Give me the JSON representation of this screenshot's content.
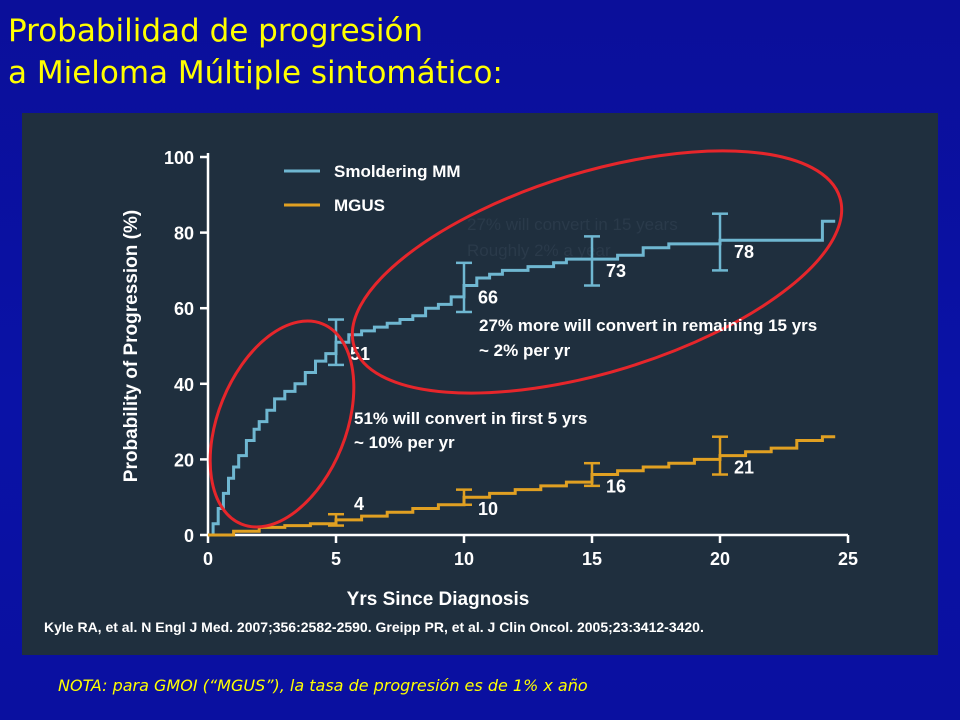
{
  "slide": {
    "title_line1": "Probabilidad de progresión",
    "title_line2": "a Mieloma Múltiple sintomático:",
    "footnote": "NOTA: para GMOI (“MGUS”), la tasa de progresión  es de 1% x año"
  },
  "colors": {
    "background": "#0a12a6",
    "title": "#ffff00",
    "panel": "#1f2f3e",
    "smm": "#6fb7d1",
    "mgus": "#e0a022",
    "ellipse": "#e6262b",
    "axis": "#ffffff",
    "overlay_text": "#2a3a4a"
  },
  "chart_data": {
    "type": "line",
    "title": "",
    "xlabel": "Yrs Since Diagnosis",
    "ylabel": "Probability of Progression (%)",
    "xlim": [
      0,
      25
    ],
    "ylim": [
      0,
      100
    ],
    "x_ticks": [
      0,
      5,
      10,
      15,
      20,
      25
    ],
    "y_ticks": [
      0,
      20,
      40,
      60,
      80,
      100
    ],
    "grid": false,
    "legend_position": "top-left",
    "series": [
      {
        "name": "Smoldering MM",
        "color": "#6fb7d1",
        "x": [
          0,
          0.2,
          0.4,
          0.6,
          0.8,
          1.0,
          1.2,
          1.5,
          1.8,
          2.0,
          2.3,
          2.6,
          3.0,
          3.4,
          3.8,
          4.2,
          4.6,
          5.0,
          5.5,
          6.0,
          6.5,
          7.0,
          7.5,
          8.0,
          8.5,
          9.0,
          9.5,
          10.0,
          10.5,
          11.0,
          11.5,
          12.0,
          12.5,
          13.0,
          13.5,
          14.0,
          14.5,
          15.0,
          16.0,
          17.0,
          18.0,
          19.0,
          20.0,
          21.0,
          22.0,
          23.0,
          24.0,
          24.5
        ],
        "y": [
          0,
          3,
          7,
          11,
          15,
          18,
          21,
          25,
          28,
          30,
          33,
          36,
          38,
          40,
          43,
          46,
          48,
          51,
          53,
          54,
          55,
          56,
          57,
          58,
          60,
          61,
          63,
          66,
          68,
          69,
          70,
          70,
          71,
          71,
          72,
          73,
          73,
          73,
          74,
          76,
          77,
          77,
          78,
          78,
          78,
          78,
          83,
          83
        ]
      },
      {
        "name": "MGUS",
        "color": "#e0a022",
        "x": [
          0,
          1,
          2,
          3,
          4,
          5,
          6,
          7,
          8,
          9,
          10,
          11,
          12,
          13,
          14,
          15,
          16,
          17,
          18,
          19,
          20,
          21,
          22,
          23,
          24,
          24.5
        ],
        "y": [
          0,
          1,
          2,
          2.5,
          3,
          4,
          5,
          6,
          7,
          8,
          10,
          11,
          12,
          13,
          14,
          16,
          17,
          18,
          19,
          20,
          21,
          22,
          23,
          25,
          26,
          26
        ]
      }
    ],
    "point_labels": [
      {
        "series": "Smoldering MM",
        "x": 5,
        "y": 51,
        "label": "51",
        "err_low": 45,
        "err_high": 57
      },
      {
        "series": "Smoldering MM",
        "x": 10,
        "y": 66,
        "label": "66",
        "err_low": 59,
        "err_high": 72
      },
      {
        "series": "Smoldering MM",
        "x": 15,
        "y": 73,
        "label": "73",
        "err_low": 66,
        "err_high": 79
      },
      {
        "series": "Smoldering MM",
        "x": 20,
        "y": 78,
        "label": "78",
        "err_low": 70,
        "err_high": 85
      },
      {
        "series": "MGUS",
        "x": 5,
        "y": 4,
        "label": "4",
        "err_low": 2.5,
        "err_high": 5.5
      },
      {
        "series": "MGUS",
        "x": 10,
        "y": 10,
        "label": "10",
        "err_low": 8,
        "err_high": 12
      },
      {
        "series": "MGUS",
        "x": 15,
        "y": 16,
        "label": "16",
        "err_low": 13,
        "err_high": 19
      },
      {
        "series": "MGUS",
        "x": 20,
        "y": 21,
        "label": "21",
        "err_low": 16,
        "err_high": 26
      }
    ],
    "annotations": [
      {
        "line1": "51% will convert in first 5 yrs",
        "line2": "~ 10% per yr"
      },
      {
        "line1": "27% more will convert in remaining 15 yrs",
        "line2": "~ 2% per yr"
      }
    ],
    "faint_overlay": {
      "line1": "27% will convert in 15 years",
      "line2": "Roughly 2% a year"
    },
    "citation": "Kyle RA, et al. N Engl J Med. 2007;356:2582-2590. Greipp PR, et al. J Clin Oncol. 2005;23:3412-3420."
  }
}
